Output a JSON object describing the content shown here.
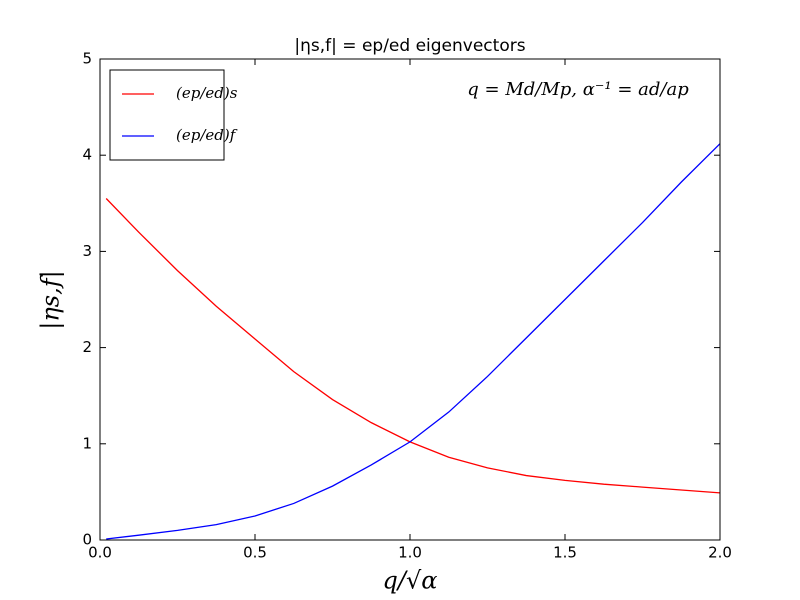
{
  "chart_data": {
    "type": "line",
    "title": "|ηs,f| = ep/ed eigenvectors",
    "x_label": "q/√α",
    "y_label": "|ηs,f|",
    "annotation": "q = Md/Mp, α⁻¹ = ad/ap",
    "x": [
      0.02,
      0.125,
      0.25,
      0.375,
      0.5,
      0.625,
      0.75,
      0.875,
      1.0,
      1.125,
      1.25,
      1.375,
      1.5,
      1.625,
      1.75,
      1.875,
      2.0
    ],
    "series": [
      {
        "name": "(ep/ed)s",
        "color": "#ff0000",
        "values": [
          3.55,
          3.2,
          2.8,
          2.43,
          2.09,
          1.75,
          1.46,
          1.22,
          1.02,
          0.86,
          0.75,
          0.67,
          0.62,
          0.58,
          0.55,
          0.52,
          0.49
        ]
      },
      {
        "name": "(ep/ed)f",
        "color": "#0000ff",
        "values": [
          0.01,
          0.05,
          0.1,
          0.16,
          0.25,
          0.38,
          0.56,
          0.78,
          1.02,
          1.33,
          1.7,
          2.1,
          2.5,
          2.9,
          3.3,
          3.72,
          4.12
        ]
      }
    ],
    "xlim": [
      0,
      2
    ],
    "ylim": [
      0,
      5
    ],
    "xticks": [
      {
        "value": 0,
        "label": "0.0"
      },
      0.5,
      {
        "value": 1,
        "label": "1.0"
      },
      1.5,
      {
        "value": 2,
        "label": "2.0"
      }
    ],
    "yticks": [
      0,
      1,
      2,
      3,
      4,
      5
    ],
    "legend": "upper-left",
    "grid": false
  }
}
